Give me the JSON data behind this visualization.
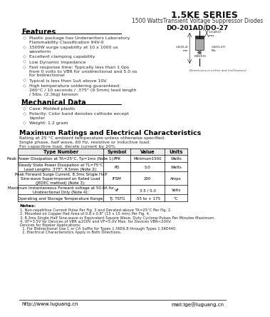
{
  "title": "1.5KE SERIES",
  "subtitle": "1500 WattsTransient Voltage Suppressor Diodes",
  "package": "DO-201AD/DO-27",
  "bg_color": "#ffffff",
  "features_title": "Features",
  "features": [
    "Plastic package has Underwriters Laboratory\nFlammability Classification 94V-0",
    "1500W surge capability at 10 x 1000 us\nwaveform",
    "Excellent clamping capability",
    "Low Dynamic Impedance",
    "Fast response time: Typically less than 1.0ps\nfrom 0 volts to VBR for unidirectional and 5.0 ns\nfor bidirectional",
    "Typical is less than 1uA above 10V",
    "High temperature soldering guaranteed:\n260°C / 10 seconds / .375\" (9.5mm) lead length\n/ 5lbs. (2.3kg) tension"
  ],
  "mech_title": "Mechanical Data",
  "mech": [
    "Case: Molded plastic",
    "Polarity: Color band denotes cathode except\nbipolar",
    "Weight: 1.2 gram"
  ],
  "max_title": "Maximum Ratings and Electrical Characteristics",
  "max_subtitle1": "Rating at 25 °C ambient temperature unless otherwise specified.",
  "max_subtitle2": "Single phase, half wave, 60 Hz, resistive or inductive load.",
  "table_note": "For capacitive load, derate current by 20%",
  "table_headers": [
    "Type Number",
    "Symbol",
    "Value",
    "Units"
  ],
  "table_rows": [
    [
      "Peak Power Dissipation at TA=25°C, Tp=1ms (Note 1):",
      "PPK",
      "Minimum1500",
      "Watts"
    ],
    [
      "Steady State Power Dissipation at TL=75°C\nLead Lengths .375\", 9.5mm (Note 2):",
      "PD",
      "5.0",
      "Watts"
    ],
    [
      "Peak Forward Surge Current, 8.3ms Single Half\nSine-wave Superimposed on Rated Load\n(JEDEC method) (Note 3):",
      "IFSM",
      "200",
      "Amps"
    ],
    [
      "Maximum Instantaneous Forward voltage at 50.0A for\nUnidirectional Only (Note 4):",
      "VF",
      "3.5 / 5.0",
      "Volts"
    ],
    [
      "Operating and Storage Temperature Range:",
      "TJ, TSTG",
      "-55 to + 175",
      "°C"
    ]
  ],
  "notes_title": "Notes:",
  "notes": [
    "1. Non-repetitive Current Pulse Per Fig. 3 and Derated above TA=25°C Per Fig. 2.",
    "2. Mounted on Copper Pad Area of 0.8 x 0.8\" (15 x 15 mm) Per Fig. 4.",
    "3. 8.3ms Single Half Sine-wave or Equivalent Square Wave, Duty Cyclone-Pulses Per Minutes Maximum.",
    "4. VF=3.5V for Devices of VBR ≥200V and VF=5.0V Max. for Devices VBR<200V.",
    "Devices for Bipolar Applications:",
    "  1. For Bidirectional Use C or CA Suffix for Types 1.5KE6.8 through Types 1.5KE440.",
    "  2. Electrical Characteristics Apply in Both Directions."
  ],
  "footer_left": "http://www.luguang.cn",
  "footer_right": "mail:lge@luguang.cn"
}
